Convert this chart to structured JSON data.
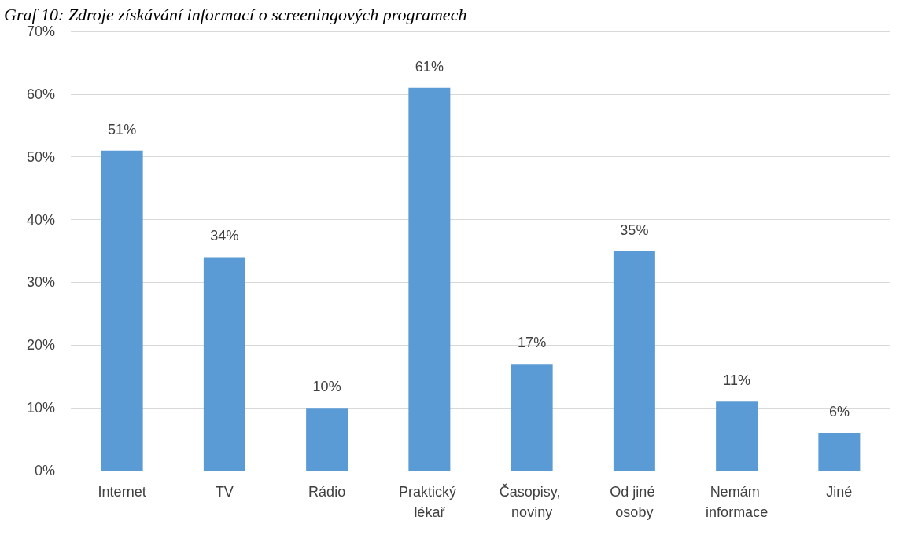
{
  "chart_data": {
    "type": "bar",
    "title": "Graf 10: Zdroje získávání informací o screeningových programech",
    "categories": [
      "Internet",
      "TV",
      "Rádio",
      "Praktický lékař",
      "Časopisy, noviny",
      "Od jiné osoby",
      "Nemám informace",
      "Jiné"
    ],
    "values": [
      51,
      34,
      10,
      61,
      17,
      35,
      11,
      6
    ],
    "value_labels": [
      "51%",
      "34%",
      "10%",
      "61%",
      "17%",
      "35%",
      "11%",
      "6%"
    ],
    "color": "#5b9bd5",
    "ylim": [
      0,
      70
    ],
    "yticks": [
      {
        "value": 0,
        "label": "0%"
      },
      {
        "value": 10,
        "label": "10%"
      },
      {
        "value": 20,
        "label": "20%"
      },
      {
        "value": 30,
        "label": "30%"
      },
      {
        "value": 40,
        "label": "40%"
      },
      {
        "value": 50,
        "label": "50%"
      },
      {
        "value": 60,
        "label": "60%"
      },
      {
        "value": 70,
        "label": "70%"
      }
    ],
    "grid": true
  }
}
